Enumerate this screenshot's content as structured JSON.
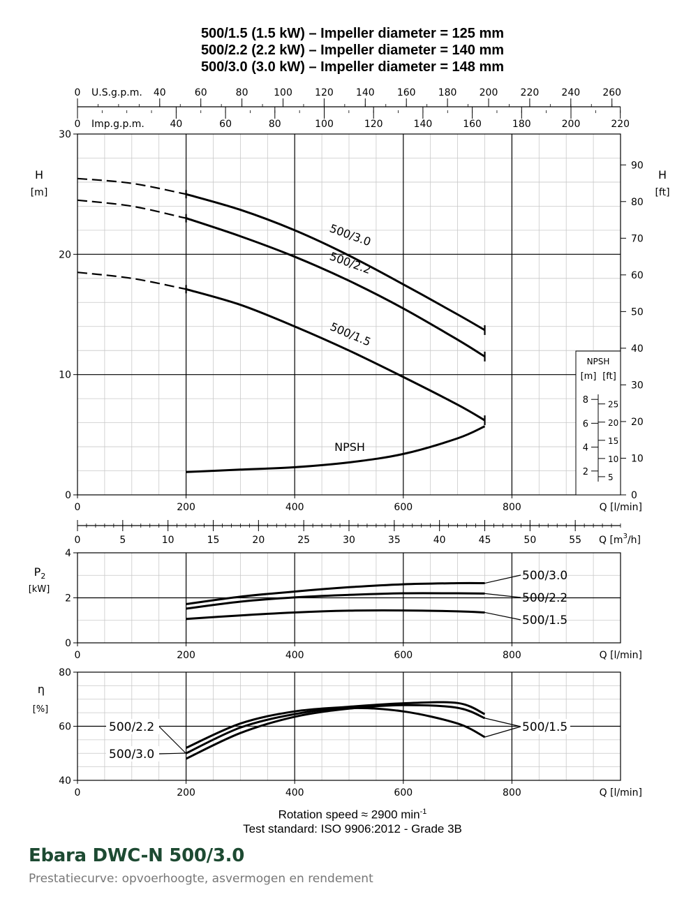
{
  "header": {
    "title_lines": [
      "500/1.5 (1.5 kW) – Impeller diameter = 125 mm",
      "500/2.2 (2.2 kW) – Impeller diameter = 140 mm",
      "500/3.0 (3.0 kW) – Impeller diameter = 148 mm"
    ]
  },
  "footer": {
    "rotation_text": "Rotation speed ≈ 2900 min",
    "rotation_sup": "-1",
    "standard": "Test standard: ISO 9906:2012 - Grade 3B"
  },
  "brand": {
    "name": "Ebara DWC-N 500/3.0",
    "subtitle": "Prestatiecurve: opvoerhoogte, asvermogen en rendement"
  },
  "colors": {
    "line": "#000000",
    "grid_minor": "#c8c8c8",
    "grid_major": "#000000",
    "brand": "#1d4a32",
    "subtitle": "#777777"
  },
  "chart_data": [
    {
      "type": "line",
      "id": "head",
      "xlabel": "Q [l/min]",
      "ylabel": "H [m]",
      "ylabel_right": "H [ft]",
      "xlim": [
        0,
        1000
      ],
      "ylim": [
        0,
        30
      ],
      "x_ticks": [
        0,
        200,
        400,
        600,
        800
      ],
      "y_ticks": [
        0,
        10,
        20,
        30
      ],
      "y_ticks_right": [
        0,
        10,
        20,
        30,
        40,
        50,
        60,
        70,
        80,
        90
      ],
      "top_axes": [
        {
          "label": "U.S.g.p.m.",
          "ticks": [
            0,
            40,
            60,
            80,
            100,
            120,
            140,
            160,
            180,
            200,
            220,
            240,
            260
          ]
        },
        {
          "label": "Imp.g.p.m.",
          "ticks": [
            0,
            40,
            60,
            80,
            100,
            120,
            140,
            160,
            180,
            200,
            220
          ]
        }
      ],
      "secondary_x_axis": {
        "label": "Q [m",
        "label_sup": "3",
        "label_end": "/h]",
        "ticks": [
          0,
          5,
          10,
          15,
          20,
          25,
          30,
          35,
          40,
          45,
          50,
          55
        ]
      },
      "series": [
        {
          "name": "500/3.0",
          "dashed_x": [
            0,
            100,
            200
          ],
          "dashed_y": [
            26.3,
            25.9,
            25.0
          ],
          "x": [
            200,
            300,
            400,
            500,
            600,
            700,
            750
          ],
          "y": [
            25.0,
            23.7,
            22.0,
            19.9,
            17.5,
            15.0,
            13.7
          ]
        },
        {
          "name": "500/2.2",
          "dashed_x": [
            0,
            100,
            200
          ],
          "dashed_y": [
            24.5,
            24.0,
            23.0
          ],
          "x": [
            200,
            300,
            400,
            500,
            600,
            700,
            750
          ],
          "y": [
            23.0,
            21.5,
            19.8,
            17.8,
            15.5,
            12.9,
            11.5
          ]
        },
        {
          "name": "500/1.5",
          "dashed_x": [
            0,
            100,
            200
          ],
          "dashed_y": [
            18.5,
            18.0,
            17.1
          ],
          "x": [
            200,
            300,
            400,
            500,
            600,
            700,
            750
          ],
          "y": [
            17.1,
            15.8,
            14.0,
            12.0,
            9.8,
            7.5,
            6.2
          ]
        },
        {
          "name": "NPSH",
          "x": [
            200,
            300,
            400,
            500,
            600,
            700,
            750
          ],
          "y": [
            1.9,
            2.1,
            2.3,
            2.7,
            3.4,
            4.7,
            5.7
          ]
        }
      ],
      "npsh_inset": {
        "title": "NPSH",
        "units": [
          "[m]",
          "[ft]"
        ],
        "m_ticks": [
          2,
          4,
          6,
          8
        ],
        "ft_ticks": [
          5,
          10,
          15,
          20,
          25
        ]
      }
    },
    {
      "type": "line",
      "id": "power",
      "xlabel": "Q [l/min]",
      "ylabel": "P",
      "ylabel_sub": "2",
      "ylabel_unit": "[kW]",
      "xlim": [
        0,
        1000
      ],
      "ylim": [
        0,
        4
      ],
      "x_ticks": [
        0,
        200,
        400,
        600,
        800
      ],
      "y_ticks": [
        0,
        2,
        4
      ],
      "series": [
        {
          "name": "500/3.0",
          "x": [
            200,
            300,
            400,
            500,
            600,
            700,
            750
          ],
          "y": [
            1.72,
            2.05,
            2.28,
            2.47,
            2.6,
            2.65,
            2.65
          ]
        },
        {
          "name": "500/2.2",
          "x": [
            200,
            300,
            400,
            500,
            600,
            700,
            750
          ],
          "y": [
            1.52,
            1.83,
            2.02,
            2.13,
            2.2,
            2.2,
            2.19
          ]
        },
        {
          "name": "500/1.5",
          "x": [
            200,
            300,
            400,
            500,
            600,
            700,
            750
          ],
          "y": [
            1.06,
            1.22,
            1.35,
            1.43,
            1.44,
            1.4,
            1.35
          ]
        }
      ]
    },
    {
      "type": "line",
      "id": "efficiency",
      "xlabel": "Q [l/min]",
      "ylabel": "η",
      "ylabel_unit": "[%]",
      "xlim": [
        0,
        1000
      ],
      "ylim": [
        40,
        80
      ],
      "x_ticks": [
        0,
        200,
        400,
        600,
        800
      ],
      "y_ticks": [
        40,
        60,
        80
      ],
      "series": [
        {
          "name": "500/2.2",
          "x": [
            200,
            300,
            400,
            500,
            600,
            700,
            750
          ],
          "y": [
            52,
            61,
            65.5,
            67.2,
            68.5,
            68.6,
            64.5
          ]
        },
        {
          "name": "500/3.0",
          "x": [
            200,
            300,
            400,
            500,
            600,
            700,
            750
          ],
          "y": [
            48,
            57.5,
            63.5,
            66.5,
            67.8,
            66.8,
            63
          ]
        },
        {
          "name": "500/1.5",
          "x": [
            200,
            300,
            400,
            500,
            600,
            700,
            750
          ],
          "y": [
            50,
            59.5,
            64.5,
            66.7,
            65.5,
            61,
            56
          ]
        }
      ]
    }
  ]
}
